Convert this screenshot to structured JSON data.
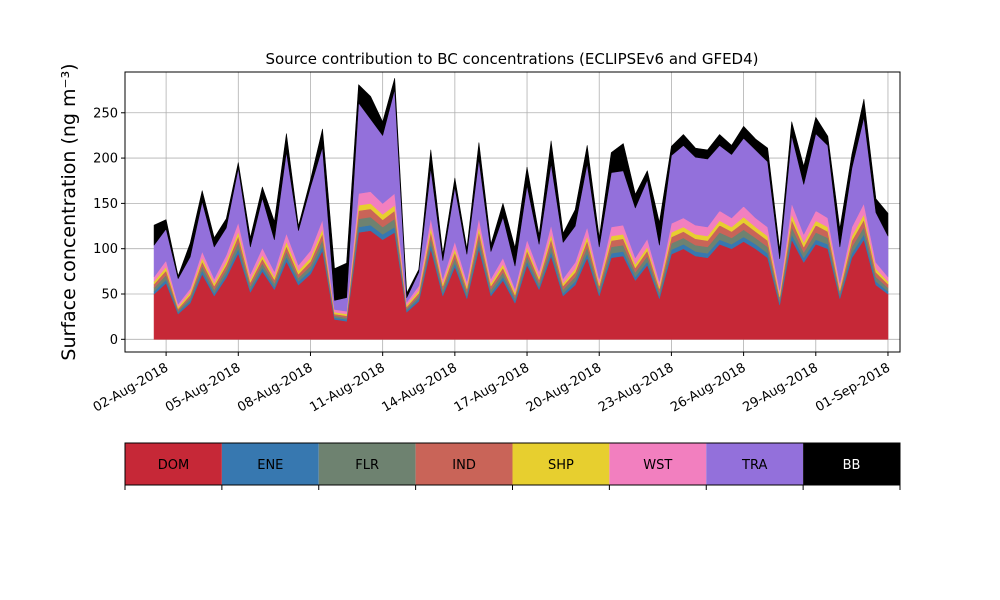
{
  "chart_data": {
    "type": "area",
    "stacked": true,
    "title": "Source contribution to BC concentrations (ECLIPSEv6 and GFED4)",
    "ylabel": "Surface concentration (ng m⁻³)",
    "xlabel": "",
    "ylim": [
      -14,
      295
    ],
    "xlim": [
      "2018-07-31T07:00",
      "2018-09-01T12:00"
    ],
    "grid": true,
    "x_tick_labels": [
      "02-Aug-2018",
      "05-Aug-2018",
      "08-Aug-2018",
      "11-Aug-2018",
      "14-Aug-2018",
      "17-Aug-2018",
      "20-Aug-2018",
      "23-Aug-2018",
      "26-Aug-2018",
      "29-Aug-2018",
      "01-Sep-2018"
    ],
    "x_tick_dates": [
      "2018-08-02",
      "2018-08-05",
      "2018-08-08",
      "2018-08-11",
      "2018-08-14",
      "2018-08-17",
      "2018-08-20",
      "2018-08-23",
      "2018-08-26",
      "2018-08-29",
      "2018-09-01"
    ],
    "y_ticks": [
      0,
      50,
      100,
      150,
      200,
      250
    ],
    "x": [
      "2018-08-01T12:00",
      "2018-08-02T00:00",
      "2018-08-02T12:00",
      "2018-08-03T00:00",
      "2018-08-03T12:00",
      "2018-08-04T00:00",
      "2018-08-04T12:00",
      "2018-08-05T00:00",
      "2018-08-05T12:00",
      "2018-08-06T00:00",
      "2018-08-06T12:00",
      "2018-08-07T00:00",
      "2018-08-07T12:00",
      "2018-08-08T00:00",
      "2018-08-08T12:00",
      "2018-08-09T00:00",
      "2018-08-09T12:00",
      "2018-08-10T00:00",
      "2018-08-10T12:00",
      "2018-08-11T00:00",
      "2018-08-11T12:00",
      "2018-08-12T00:00",
      "2018-08-12T12:00",
      "2018-08-13T00:00",
      "2018-08-13T12:00",
      "2018-08-14T00:00",
      "2018-08-14T12:00",
      "2018-08-15T00:00",
      "2018-08-15T12:00",
      "2018-08-16T00:00",
      "2018-08-16T12:00",
      "2018-08-17T00:00",
      "2018-08-17T12:00",
      "2018-08-18T00:00",
      "2018-08-18T12:00",
      "2018-08-19T00:00",
      "2018-08-19T12:00",
      "2018-08-20T00:00",
      "2018-08-20T12:00",
      "2018-08-21T00:00",
      "2018-08-21T12:00",
      "2018-08-22T00:00",
      "2018-08-22T12:00",
      "2018-08-23T00:00",
      "2018-08-23T12:00",
      "2018-08-24T00:00",
      "2018-08-24T12:00",
      "2018-08-25T00:00",
      "2018-08-25T12:00",
      "2018-08-26T00:00",
      "2018-08-26T12:00",
      "2018-08-27T00:00",
      "2018-08-27T12:00",
      "2018-08-28T00:00",
      "2018-08-28T12:00",
      "2018-08-29T00:00",
      "2018-08-29T12:00",
      "2018-08-30T00:00",
      "2018-08-30T12:00",
      "2018-08-31T00:00",
      "2018-08-31T12:00",
      "2018-09-01T00:00"
    ],
    "series": [
      {
        "name": "DOM",
        "color": "#c62837",
        "values": [
          50,
          62,
          28,
          40,
          72,
          48,
          68,
          95,
          52,
          75,
          55,
          86,
          60,
          72,
          98,
          22,
          20,
          118,
          120,
          110,
          118,
          30,
          42,
          100,
          48,
          80,
          45,
          100,
          48,
          65,
          40,
          82,
          55,
          92,
          48,
          60,
          90,
          48,
          90,
          92,
          65,
          82,
          45,
          94,
          100,
          92,
          90,
          105,
          100,
          108,
          100,
          90,
          38,
          110,
          85,
          105,
          100,
          45,
          90,
          110,
          60,
          50
        ]
      },
      {
        "name": "ENE",
        "color": "#3778b0",
        "values": [
          3,
          4,
          2,
          3,
          4,
          3,
          4,
          5,
          3,
          4,
          3,
          5,
          4,
          4,
          5,
          2,
          2,
          6,
          6,
          6,
          6,
          2,
          3,
          5,
          3,
          4,
          3,
          5,
          3,
          4,
          3,
          4,
          3,
          5,
          3,
          4,
          5,
          3,
          5,
          5,
          4,
          4,
          3,
          5,
          5,
          5,
          5,
          5,
          5,
          5,
          5,
          5,
          3,
          6,
          5,
          5,
          5,
          3,
          5,
          6,
          4,
          3
        ]
      },
      {
        "name": "FLR",
        "color": "#6e8270",
        "values": [
          4,
          5,
          2,
          3,
          5,
          4,
          5,
          7,
          4,
          5,
          4,
          6,
          4,
          5,
          7,
          2,
          2,
          9,
          9,
          8,
          9,
          2,
          3,
          7,
          4,
          6,
          4,
          7,
          4,
          5,
          3,
          6,
          4,
          7,
          4,
          5,
          7,
          4,
          7,
          7,
          5,
          6,
          4,
          7,
          7,
          7,
          7,
          8,
          7,
          8,
          7,
          7,
          3,
          8,
          6,
          8,
          7,
          3,
          7,
          8,
          5,
          4
        ]
      },
      {
        "name": "IND",
        "color": "#c96458",
        "values": [
          4,
          5,
          2,
          3,
          5,
          4,
          5,
          7,
          4,
          5,
          4,
          6,
          4,
          5,
          7,
          2,
          2,
          9,
          9,
          8,
          9,
          2,
          3,
          7,
          4,
          6,
          4,
          7,
          4,
          5,
          3,
          6,
          4,
          7,
          4,
          5,
          7,
          4,
          7,
          7,
          5,
          6,
          4,
          7,
          7,
          7,
          7,
          8,
          7,
          8,
          7,
          7,
          3,
          8,
          6,
          8,
          7,
          3,
          7,
          8,
          5,
          4
        ]
      },
      {
        "name": "SHP",
        "color": "#e7cf2f",
        "values": [
          3,
          4,
          2,
          3,
          4,
          3,
          4,
          5,
          3,
          4,
          3,
          5,
          4,
          4,
          5,
          2,
          2,
          6,
          6,
          6,
          6,
          2,
          3,
          5,
          3,
          4,
          3,
          5,
          3,
          4,
          3,
          4,
          3,
          5,
          3,
          4,
          5,
          3,
          5,
          5,
          4,
          4,
          3,
          5,
          5,
          5,
          5,
          5,
          5,
          6,
          5,
          5,
          3,
          6,
          5,
          5,
          5,
          3,
          5,
          6,
          4,
          3
        ]
      },
      {
        "name": "WST",
        "color": "#f27fbf",
        "values": [
          5,
          7,
          3,
          4,
          7,
          5,
          7,
          10,
          6,
          8,
          6,
          9,
          6,
          8,
          10,
          3,
          3,
          13,
          13,
          12,
          13,
          3,
          5,
          10,
          5,
          8,
          5,
          10,
          5,
          7,
          4,
          8,
          6,
          10,
          5,
          7,
          10,
          5,
          10,
          10,
          7,
          9,
          5,
          10,
          10,
          10,
          10,
          11,
          10,
          12,
          10,
          10,
          4,
          12,
          9,
          11,
          10,
          5,
          10,
          12,
          7,
          5
        ]
      },
      {
        "name": "TRA",
        "color": "#9370db",
        "values": [
          35,
          35,
          28,
          35,
          55,
          35,
          30,
          60,
          30,
          55,
          35,
          90,
          38,
          70,
          80,
          10,
          15,
          100,
          80,
          75,
          115,
          5,
          15,
          55,
          20,
          60,
          30,
          65,
          30,
          45,
          25,
          60,
          30,
          68,
          40,
          40,
          70,
          35,
          60,
          60,
          55,
          65,
          40,
          75,
          80,
          75,
          75,
          72,
          70,
          75,
          75,
          72,
          35,
          75,
          55,
          85,
          80,
          40,
          65,
          95,
          55,
          45
        ]
      },
      {
        "name": "BB",
        "color": "#000000",
        "values": [
          22,
          10,
          3,
          15,
          12,
          10,
          10,
          6,
          10,
          12,
          20,
          20,
          5,
          8,
          20,
          35,
          38,
          20,
          25,
          15,
          12,
          5,
          3,
          20,
          7,
          10,
          6,
          18,
          8,
          15,
          20,
          20,
          10,
          25,
          10,
          18,
          20,
          10,
          22,
          30,
          15,
          10,
          25,
          10,
          12,
          10,
          10,
          12,
          10,
          13,
          12,
          15,
          10,
          15,
          20,
          18,
          10,
          20,
          15,
          20,
          15,
          25
        ]
      }
    ]
  },
  "legend": {
    "items": [
      {
        "key": "dom",
        "label": "DOM",
        "color": "#c62837",
        "text_color": "#000000"
      },
      {
        "key": "ene",
        "label": "ENE",
        "color": "#3778b0",
        "text_color": "#000000"
      },
      {
        "key": "flr",
        "label": "FLR",
        "color": "#6e8270",
        "text_color": "#000000"
      },
      {
        "key": "ind",
        "label": "IND",
        "color": "#c96458",
        "text_color": "#000000"
      },
      {
        "key": "shp",
        "label": "SHP",
        "color": "#e7cf2f",
        "text_color": "#000000"
      },
      {
        "key": "wst",
        "label": "WST",
        "color": "#f27fbf",
        "text_color": "#000000"
      },
      {
        "key": "tra",
        "label": "TRA",
        "color": "#9370db",
        "text_color": "#000000"
      },
      {
        "key": "bb",
        "label": "BB",
        "color": "#000000",
        "text_color": "#ffffff"
      }
    ]
  }
}
